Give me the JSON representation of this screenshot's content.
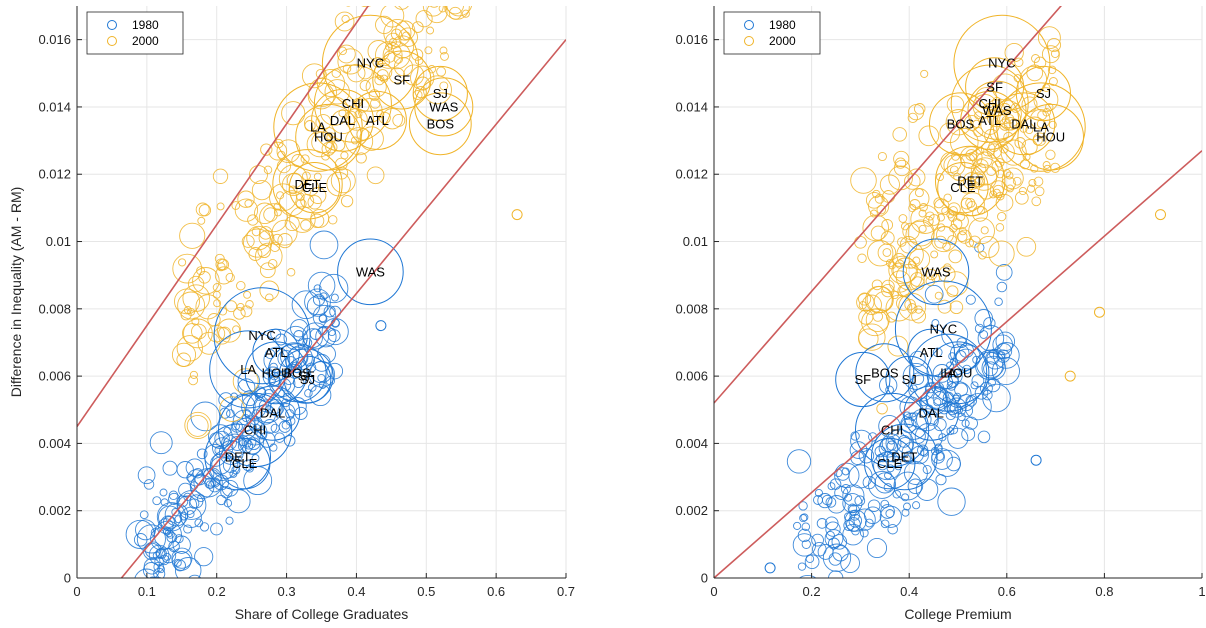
{
  "colors": {
    "s1980": "#1f77d4",
    "s2000": "#f0b429",
    "fit": "#cd5c5c"
  },
  "chart_data": [
    {
      "type": "scatter",
      "title": "",
      "xlabel": "Share of College Graduates",
      "ylabel": "Difference in Inequality (AM - RM)",
      "xlim": [
        0,
        0.7
      ],
      "ylim": [
        0,
        0.017
      ],
      "xticks": [
        0,
        0.1,
        0.2,
        0.3,
        0.4,
        0.5,
        0.6,
        0.7
      ],
      "xtick_labels": [
        "0",
        "0.1",
        "0.2",
        "0.3",
        "0.4",
        "0.5",
        "0.6",
        "0.7"
      ],
      "yticks": [
        0,
        0.002,
        0.004,
        0.006,
        0.008,
        0.01,
        0.012,
        0.014,
        0.016
      ],
      "ytick_labels": [
        "0",
        "0.002",
        "0.004",
        "0.006",
        "0.008",
        "0.01",
        "0.012",
        "0.014",
        "0.016"
      ],
      "grid": true,
      "legend": {
        "placement": "top-left",
        "entries": [
          "1980",
          "2000"
        ]
      },
      "fit_lines": [
        {
          "x": [
            0,
            0.7
          ],
          "y": [
            0.0045,
            0.0255
          ]
        },
        {
          "x": [
            0,
            0.7
          ],
          "y": [
            -0.0016,
            0.016
          ]
        }
      ],
      "series": [
        {
          "name": "1980",
          "labeled": [
            {
              "label": "WAS",
              "x": 0.42,
              "y": 0.0091,
              "s": 0.6
            },
            {
              "label": "NYC",
              "x": 0.265,
              "y": 0.0072,
              "s": 1.0
            },
            {
              "label": "ATL",
              "x": 0.285,
              "y": 0.0067,
              "s": 0.35
            },
            {
              "label": "LA",
              "x": 0.245,
              "y": 0.0062,
              "s": 0.75
            },
            {
              "label": "HOU",
              "x": 0.285,
              "y": 0.0061,
              "s": 0.55
            },
            {
              "label": "BOS",
              "x": 0.315,
              "y": 0.0061,
              "s": 0.5
            },
            {
              "label": "SF",
              "x": 0.328,
              "y": 0.006,
              "s": 0.45
            },
            {
              "label": "SJ",
              "x": 0.33,
              "y": 0.0059,
              "s": 0.35
            },
            {
              "label": "DAL",
              "x": 0.28,
              "y": 0.0049,
              "s": 0.45
            },
            {
              "label": "CHI",
              "x": 0.255,
              "y": 0.0044,
              "s": 0.7
            },
            {
              "label": "DET",
              "x": 0.23,
              "y": 0.0036,
              "s": 0.6
            },
            {
              "label": "CLE",
              "x": 0.24,
              "y": 0.0034,
              "s": 0.4
            }
          ]
        },
        {
          "name": "2000",
          "labeled": [
            {
              "label": "NYC",
              "x": 0.42,
              "y": 0.0153,
              "s": 1.0
            },
            {
              "label": "SF",
              "x": 0.465,
              "y": 0.0148,
              "s": 0.5
            },
            {
              "label": "SJ",
              "x": 0.52,
              "y": 0.0144,
              "s": 0.45
            },
            {
              "label": "WAS",
              "x": 0.525,
              "y": 0.014,
              "s": 0.5
            },
            {
              "label": "CHI",
              "x": 0.395,
              "y": 0.0141,
              "s": 0.75
            },
            {
              "label": "BOS",
              "x": 0.52,
              "y": 0.0135,
              "s": 0.55
            },
            {
              "label": "ATL",
              "x": 0.43,
              "y": 0.0136,
              "s": 0.5
            },
            {
              "label": "DAL",
              "x": 0.38,
              "y": 0.0136,
              "s": 0.55
            },
            {
              "label": "LA",
              "x": 0.345,
              "y": 0.0134,
              "s": 0.9
            },
            {
              "label": "HOU",
              "x": 0.36,
              "y": 0.0131,
              "s": 0.6
            },
            {
              "label": "DET",
              "x": 0.33,
              "y": 0.0117,
              "s": 0.65
            },
            {
              "label": "CLE",
              "x": 0.34,
              "y": 0.0116,
              "s": 0.4
            }
          ]
        }
      ],
      "extra_points": [
        {
          "series": "2000",
          "x": 0.63,
          "y": 0.0108
        },
        {
          "series": "1980",
          "x": 0.435,
          "y": 0.0075
        }
      ],
      "cloud": [
        {
          "series": "1980",
          "x_range": [
            0.09,
            0.37
          ],
          "slope": 0.0262,
          "intercept": -0.0021,
          "noise": 0.0009,
          "n": 240
        },
        {
          "series": "2000",
          "x_range": [
            0.15,
            0.56
          ],
          "slope": 0.0262,
          "intercept": 0.0035,
          "noise": 0.0013,
          "n": 260
        }
      ]
    },
    {
      "type": "scatter",
      "title": "",
      "xlabel": "College Premium",
      "ylabel": "",
      "xlim": [
        0,
        1
      ],
      "ylim": [
        0,
        0.017
      ],
      "xticks": [
        0,
        0.2,
        0.4,
        0.6,
        0.8,
        1
      ],
      "xtick_labels": [
        "0",
        "0.2",
        "0.4",
        "0.6",
        "0.8",
        "1"
      ],
      "yticks": [
        0,
        0.002,
        0.004,
        0.006,
        0.008,
        0.01,
        0.012,
        0.014,
        0.016
      ],
      "ytick_labels": [
        "0",
        "0.002",
        "0.004",
        "0.006",
        "0.008",
        "0.01",
        "0.012",
        "0.014",
        "0.016"
      ],
      "grid": true,
      "legend": {
        "placement": "top-left",
        "entries": [
          "1980",
          "2000"
        ]
      },
      "fit_lines": [
        {
          "x": [
            0,
            1
          ],
          "y": [
            0.0052,
            0.0218
          ]
        },
        {
          "x": [
            0,
            1
          ],
          "y": [
            0,
            0.0127
          ]
        }
      ],
      "series": [
        {
          "name": "1980",
          "labeled": [
            {
              "label": "WAS",
              "x": 0.455,
              "y": 0.0091,
              "s": 0.6
            },
            {
              "label": "NYC",
              "x": 0.47,
              "y": 0.0074,
              "s": 1.0
            },
            {
              "label": "ATL",
              "x": 0.445,
              "y": 0.0067,
              "s": 0.35
            },
            {
              "label": "LA",
              "x": 0.48,
              "y": 0.0061,
              "s": 0.75
            },
            {
              "label": "HOU",
              "x": 0.5,
              "y": 0.0061,
              "s": 0.55
            },
            {
              "label": "BOS",
              "x": 0.35,
              "y": 0.0061,
              "s": 0.5
            },
            {
              "label": "SF",
              "x": 0.305,
              "y": 0.0059,
              "s": 0.45
            },
            {
              "label": "SJ",
              "x": 0.4,
              "y": 0.0059,
              "s": 0.35
            },
            {
              "label": "DAL",
              "x": 0.445,
              "y": 0.0049,
              "s": 0.45
            },
            {
              "label": "CHI",
              "x": 0.365,
              "y": 0.0044,
              "s": 0.7
            },
            {
              "label": "DET",
              "x": 0.39,
              "y": 0.0036,
              "s": 0.6
            },
            {
              "label": "CLE",
              "x": 0.36,
              "y": 0.0034,
              "s": 0.4
            }
          ]
        },
        {
          "name": "2000",
          "labeled": [
            {
              "label": "NYC",
              "x": 0.59,
              "y": 0.0153,
              "s": 1.0
            },
            {
              "label": "SF",
              "x": 0.575,
              "y": 0.0146,
              "s": 0.5
            },
            {
              "label": "SJ",
              "x": 0.675,
              "y": 0.0144,
              "s": 0.45
            },
            {
              "label": "CHI",
              "x": 0.565,
              "y": 0.0141,
              "s": 0.75
            },
            {
              "label": "WAS",
              "x": 0.58,
              "y": 0.0139,
              "s": 0.5
            },
            {
              "label": "ATL",
              "x": 0.565,
              "y": 0.0136,
              "s": 0.5
            },
            {
              "label": "DAL",
              "x": 0.635,
              "y": 0.0135,
              "s": 0.55
            },
            {
              "label": "BOS",
              "x": 0.505,
              "y": 0.0135,
              "s": 0.55
            },
            {
              "label": "LA",
              "x": 0.67,
              "y": 0.0134,
              "s": 0.9
            },
            {
              "label": "HOU",
              "x": 0.69,
              "y": 0.0131,
              "s": 0.6
            },
            {
              "label": "DET",
              "x": 0.525,
              "y": 0.0118,
              "s": 0.65
            },
            {
              "label": "CLE",
              "x": 0.51,
              "y": 0.0116,
              "s": 0.4
            }
          ]
        }
      ],
      "extra_points": [
        {
          "series": "2000",
          "x": 0.915,
          "y": 0.0108
        },
        {
          "series": "2000",
          "x": 0.79,
          "y": 0.0079
        },
        {
          "series": "2000",
          "x": 0.73,
          "y": 0.006
        },
        {
          "series": "1980",
          "x": 0.66,
          "y": 0.0035
        },
        {
          "series": "1980",
          "x": 0.115,
          "y": 0.0003
        }
      ],
      "cloud": [
        {
          "series": "1980",
          "x_range": [
            0.17,
            0.6
          ],
          "slope": 0.0155,
          "intercept": -0.0022,
          "noise": 0.0011,
          "n": 240
        },
        {
          "series": "2000",
          "x_range": [
            0.3,
            0.7
          ],
          "slope": 0.0138,
          "intercept": 0.0043,
          "noise": 0.0014,
          "n": 260
        }
      ]
    }
  ]
}
